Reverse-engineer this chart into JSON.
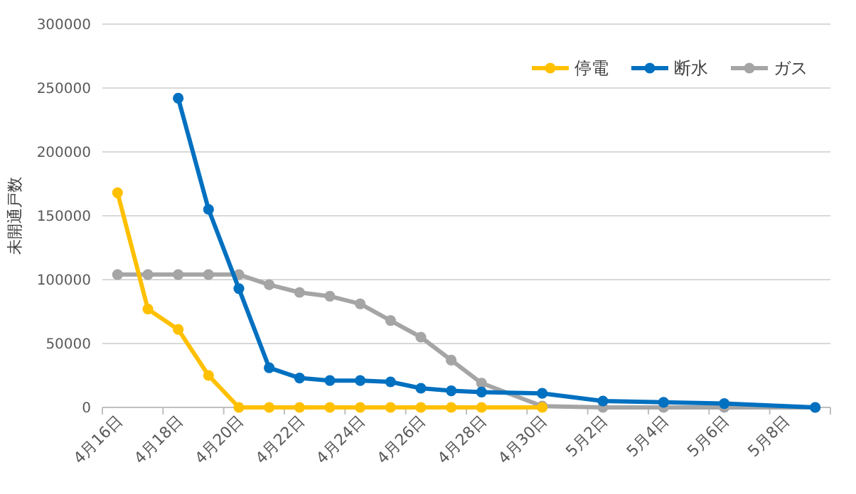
{
  "chart_data": {
    "type": "line",
    "ylabel": "未開通戸数",
    "categories": [
      "4月16日",
      null,
      "4月18日",
      null,
      "4月20日",
      null,
      "4月22日",
      null,
      "4月24日",
      null,
      "4月26日",
      null,
      "4月28日",
      null,
      "4月30日",
      null,
      "5月2日",
      null,
      "5月4日",
      null,
      "5月6日",
      null,
      "5月8日",
      null
    ],
    "series": [
      {
        "name": "停電",
        "color": "#ffc000",
        "values": [
          168000,
          77000,
          61000,
          25000,
          0,
          0,
          0,
          0,
          0,
          0,
          0,
          0,
          0,
          null,
          0,
          null,
          null,
          null,
          null,
          null,
          null,
          null,
          null,
          null
        ]
      },
      {
        "name": "断水",
        "color": "#0070c0",
        "values": [
          null,
          null,
          242000,
          155000,
          93000,
          31000,
          23000,
          21000,
          21000,
          20000,
          15000,
          13000,
          12000,
          null,
          11000,
          null,
          5000,
          null,
          4000,
          null,
          3000,
          null,
          null,
          0
        ]
      },
      {
        "name": "ガス",
        "color": "#a5a5a5",
        "values": [
          104000,
          104000,
          104000,
          104000,
          104000,
          96000,
          90000,
          87000,
          81000,
          68000,
          55000,
          37000,
          19000,
          null,
          1000,
          null,
          0,
          null,
          0,
          null,
          0,
          null,
          null,
          0
        ]
      }
    ],
    "ylim": [
      0,
      300000
    ],
    "yticks": [
      0,
      50000,
      100000,
      150000,
      200000,
      250000,
      300000
    ],
    "grid": "y",
    "legend": "top right",
    "marker": "circle",
    "line_style": "solid"
  }
}
